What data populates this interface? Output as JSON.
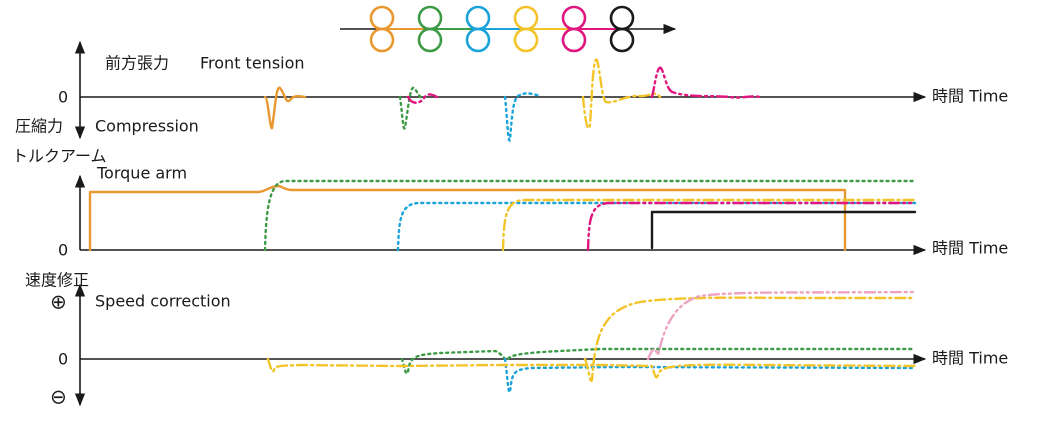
{
  "panels": [
    {
      "label_ja": "前方張力",
      "label_en": "Front tension",
      "zero": "0",
      "time": "時間 Time",
      "neg_ja": "圧縮力",
      "neg_en": "Compression"
    },
    {
      "label_ja": "トルクアーム",
      "label_en": "Torque arm",
      "zero": "0",
      "time": "時間 Time"
    },
    {
      "label_ja": "速度修正",
      "label_en": "Speed correction",
      "plus": "⊕",
      "zero": "0",
      "time": "時間 Time",
      "minus": "⊖"
    }
  ]
}
